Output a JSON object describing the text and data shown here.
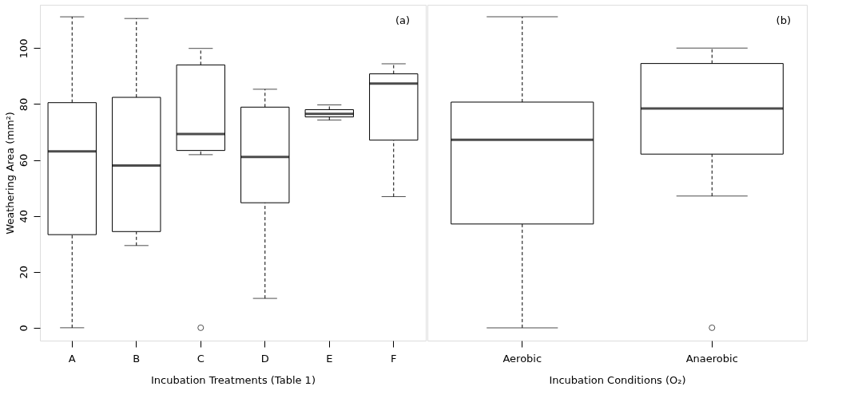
{
  "chart_data": [
    {
      "type": "box",
      "categories": [
        "A",
        "B",
        "C",
        "D",
        "E",
        "F"
      ],
      "xlabel": "Incubation Treatments (Table 1)",
      "ylabel": "Weathering Area (mm²)",
      "annotations": [
        "(a)"
      ],
      "ylim": [
        -4.6,
        115.5
      ],
      "yticks": [
        0,
        20,
        40,
        60,
        80,
        100
      ],
      "grid": false,
      "boxes": [
        {
          "low": 0,
          "q1": 33.3,
          "median": 63.1,
          "q3": 80.5,
          "high": 111.2
        },
        {
          "low": 29.4,
          "q1": 34.4,
          "median": 58.0,
          "q3": 82.4,
          "high": 110.6
        },
        {
          "low": 61.9,
          "q1": 63.4,
          "median": 69.3,
          "q3": 94.0,
          "high": 99.9,
          "outliers": [
            0
          ]
        },
        {
          "low": 10.5,
          "q1": 44.7,
          "median": 61.1,
          "q3": 78.9,
          "high": 85.3
        },
        {
          "low": 74.3,
          "q1": 75.4,
          "median": 76.5,
          "q3": 78.0,
          "high": 79.7
        },
        {
          "low": 46.9,
          "q1": 67.1,
          "median": 87.3,
          "q3": 90.8,
          "high": 94.4
        }
      ]
    },
    {
      "type": "box",
      "categories": [
        "Aerobic",
        "Anaerobic"
      ],
      "xlabel": "Incubation Conditions (O₂)",
      "annotations": [
        "(b)"
      ],
      "ylim": [
        -4.6,
        115.5
      ],
      "yticks": [
        0,
        20,
        40,
        60,
        80,
        100
      ],
      "tick_labels": "x",
      "grid": false,
      "boxes": [
        {
          "low": 0,
          "q1": 37.1,
          "median": 67.2,
          "q3": 80.7,
          "high": 111.2
        },
        {
          "low": 47.1,
          "q1": 62.1,
          "median": 78.4,
          "q3": 94.5,
          "high": 100.0,
          "outliers": [
            0
          ]
        }
      ]
    }
  ]
}
